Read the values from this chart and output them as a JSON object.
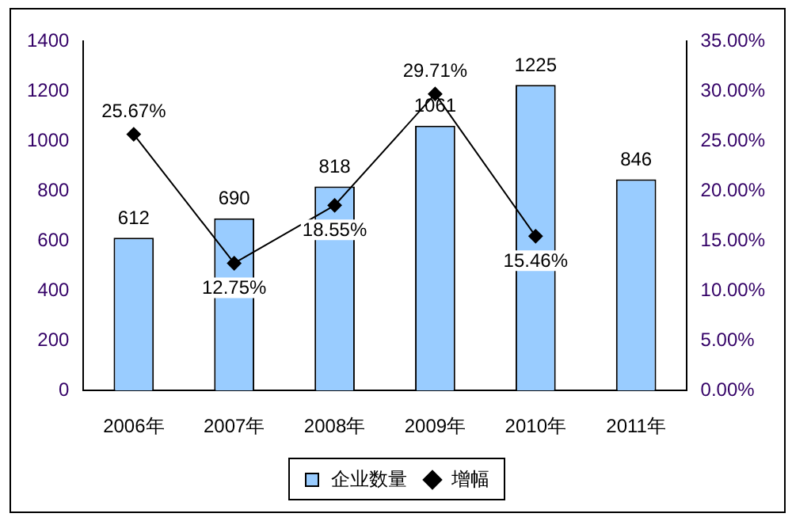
{
  "chart_data": {
    "type": "bar",
    "categories": [
      "2006年",
      "2007年",
      "2008年",
      "2009年",
      "2010年",
      "2011年"
    ],
    "series": [
      {
        "name": "企业数量",
        "color": "#99ccff",
        "values": [
          612,
          690,
          818,
          1061,
          1225,
          846
        ],
        "value_labels": [
          "612",
          "690",
          "818",
          "1061",
          "1225",
          "846"
        ]
      },
      {
        "name": "增幅",
        "type": "line",
        "axis": "y2",
        "color": "#000000",
        "values": [
          25.67,
          12.75,
          18.55,
          29.71,
          15.46,
          null
        ],
        "value_labels": [
          "25.67%",
          "12.75%",
          "18.55%",
          "29.71%",
          "15.46%",
          null
        ]
      }
    ],
    "ylim": [
      0,
      1400
    ],
    "yticks": [
      0,
      200,
      400,
      600,
      800,
      1000,
      1200,
      1400
    ],
    "y2lim": [
      0,
      35
    ],
    "y2ticks": [
      {
        "value": 0,
        "label": "0.00%"
      },
      {
        "value": 5,
        "label": "5.00%"
      },
      {
        "value": 10,
        "label": "10.00%"
      },
      {
        "value": 15,
        "label": "15.00%"
      },
      {
        "value": 20,
        "label": "20.00%"
      },
      {
        "value": 25,
        "label": "25.00%"
      },
      {
        "value": 30,
        "label": "30.00%"
      },
      {
        "value": 35,
        "label": "35.00%"
      }
    ],
    "grid": false,
    "legend": "bottom",
    "marker": "diamond",
    "line_style": "solid"
  }
}
